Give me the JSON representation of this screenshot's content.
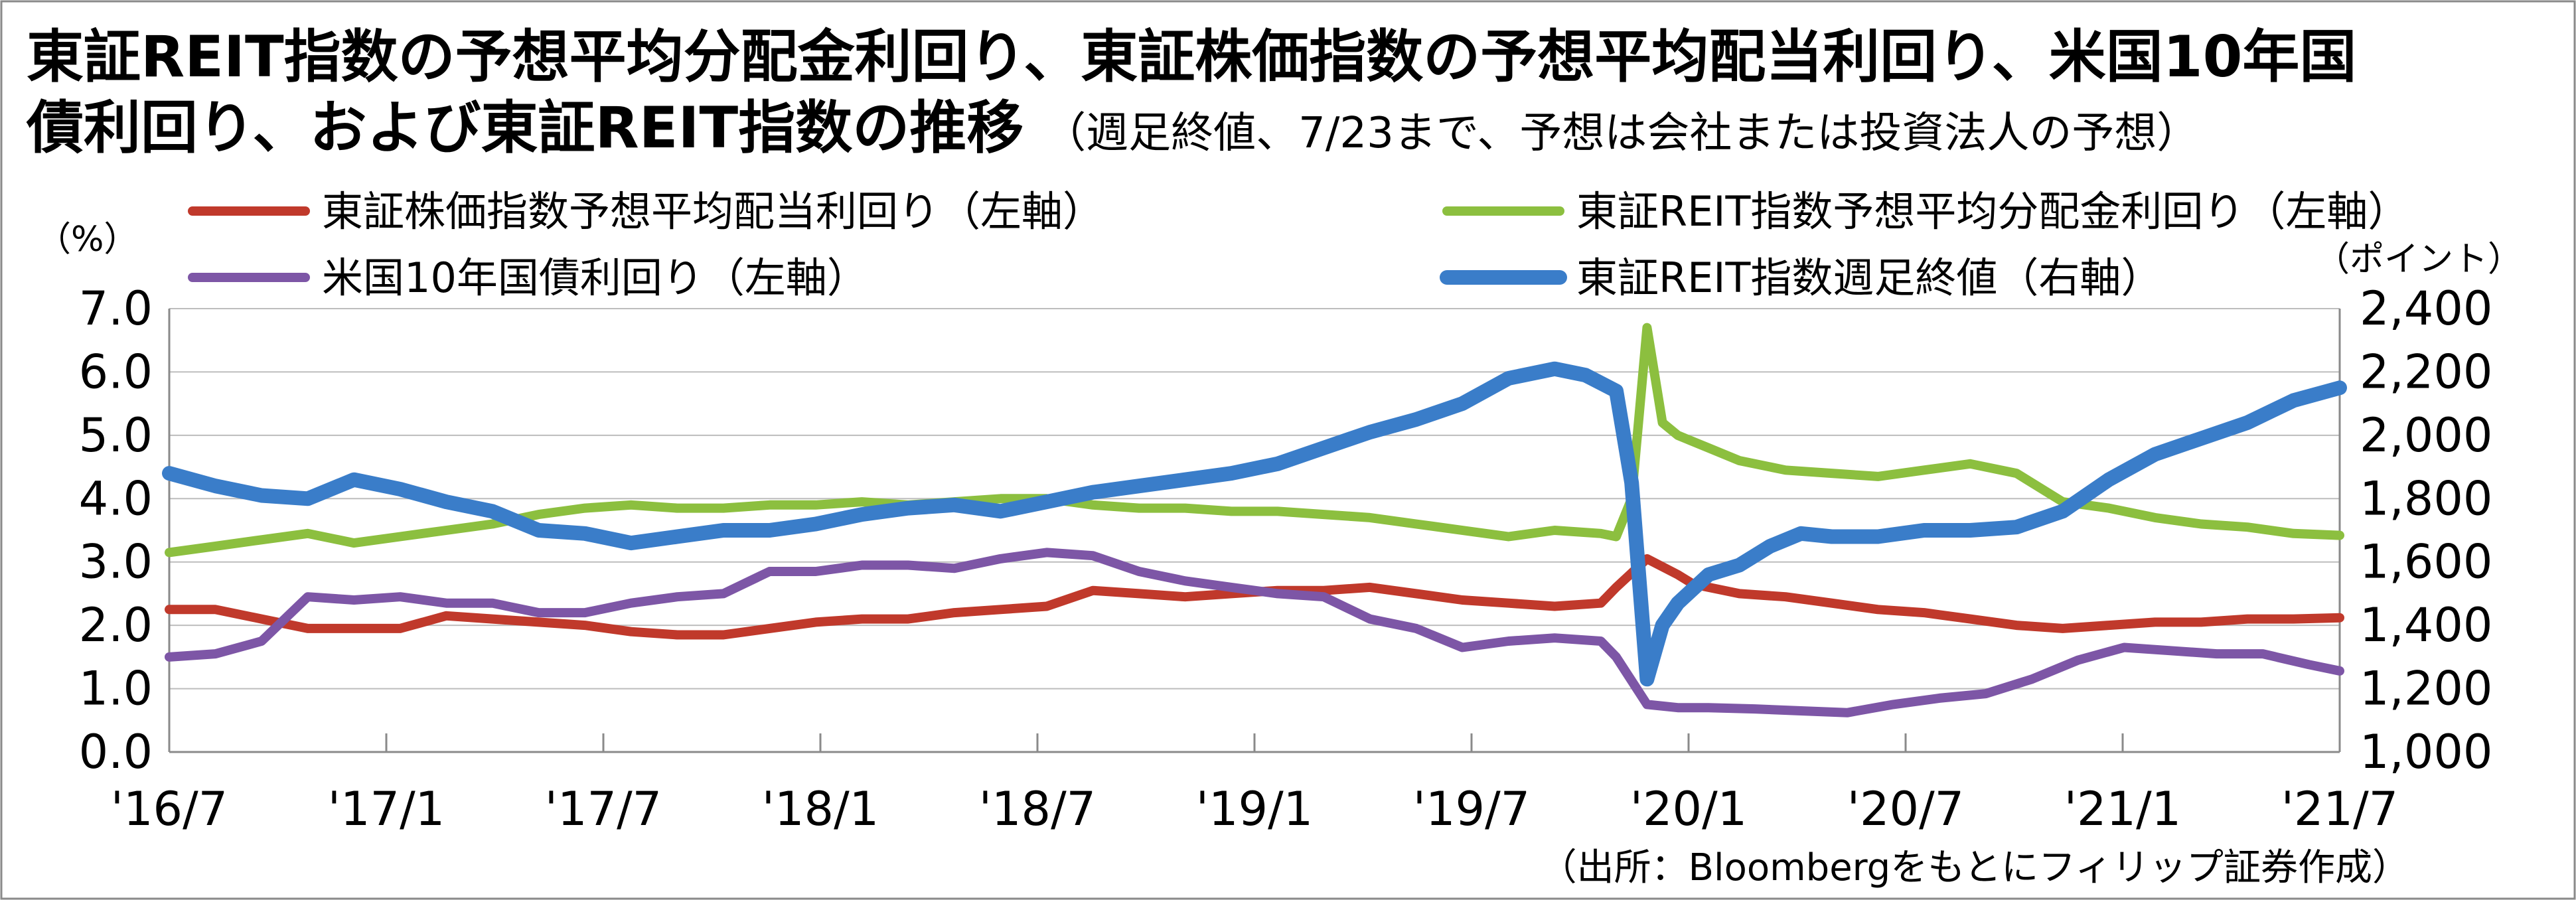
{
  "chart_data": {
    "type": "line",
    "title_line1": "東証REIT指数の予想平均分配金利回り、東証株価指数の予想平均配当利回り、米国10年国",
    "title_line2_bold": "債利回り、および東証REIT指数の推移",
    "title_line2_note": "（週足終値、7/23まで、予想は会社または投資法人の予想）",
    "left_unit": "（%）",
    "right_unit": "（ポイント）",
    "source": "（出所：Bloombergをもとにフィリップ証券作成）",
    "x_ticks": [
      "'16/7",
      "'17/1",
      "'17/7",
      "'18/1",
      "'18/7",
      "'19/1",
      "'19/7",
      "'20/1",
      "'20/7",
      "'21/1",
      "'21/7"
    ],
    "left_axis": {
      "ylim": [
        0,
        7
      ],
      "ticks": [
        "0.0",
        "1.0",
        "2.0",
        "3.0",
        "4.0",
        "5.0",
        "6.0",
        "7.0"
      ]
    },
    "right_axis": {
      "ylim": [
        1000,
        2400
      ],
      "ticks": [
        "1,000",
        "1,200",
        "1,400",
        "1,600",
        "1,800",
        "2,000",
        "2,200",
        "2,400"
      ]
    },
    "grid": true,
    "series": [
      {
        "name": "東証株価指数予想平均配当利回り（左軸）",
        "axis": "left",
        "color": "#c0392b",
        "points": [
          [
            0,
            2.25
          ],
          [
            3,
            2.25
          ],
          [
            6,
            2.1
          ],
          [
            9,
            1.95
          ],
          [
            12,
            1.95
          ],
          [
            15,
            1.95
          ],
          [
            18,
            2.15
          ],
          [
            21,
            2.1
          ],
          [
            24,
            2.05
          ],
          [
            27,
            2.0
          ],
          [
            30,
            1.9
          ],
          [
            33,
            1.85
          ],
          [
            36,
            1.85
          ],
          [
            39,
            1.95
          ],
          [
            42,
            2.05
          ],
          [
            45,
            2.1
          ],
          [
            48,
            2.1
          ],
          [
            51,
            2.2
          ],
          [
            54,
            2.25
          ],
          [
            57,
            2.3
          ],
          [
            60,
            2.55
          ],
          [
            63,
            2.5
          ],
          [
            66,
            2.45
          ],
          [
            69,
            2.5
          ],
          [
            72,
            2.55
          ],
          [
            75,
            2.55
          ],
          [
            78,
            2.6
          ],
          [
            81,
            2.5
          ],
          [
            84,
            2.4
          ],
          [
            87,
            2.35
          ],
          [
            90,
            2.3
          ],
          [
            93,
            2.35
          ],
          [
            94,
            2.6
          ],
          [
            96,
            3.05
          ],
          [
            98,
            2.8
          ],
          [
            99,
            2.65
          ],
          [
            102,
            2.5
          ],
          [
            105,
            2.45
          ],
          [
            108,
            2.35
          ],
          [
            111,
            2.25
          ],
          [
            114,
            2.2
          ],
          [
            117,
            2.1
          ],
          [
            120,
            2.0
          ],
          [
            123,
            1.95
          ],
          [
            126,
            2.0
          ],
          [
            129,
            2.05
          ],
          [
            132,
            2.05
          ],
          [
            135,
            2.1
          ],
          [
            138,
            2.1
          ],
          [
            141,
            2.12
          ]
        ]
      },
      {
        "name": "東証REIT指数予想平均分配金利回り（左軸）",
        "axis": "left",
        "color": "#8cbf3f",
        "points": [
          [
            0,
            3.15
          ],
          [
            3,
            3.25
          ],
          [
            6,
            3.35
          ],
          [
            9,
            3.45
          ],
          [
            12,
            3.3
          ],
          [
            15,
            3.4
          ],
          [
            18,
            3.5
          ],
          [
            21,
            3.6
          ],
          [
            24,
            3.75
          ],
          [
            27,
            3.85
          ],
          [
            30,
            3.9
          ],
          [
            33,
            3.85
          ],
          [
            36,
            3.85
          ],
          [
            39,
            3.9
          ],
          [
            42,
            3.9
          ],
          [
            45,
            3.95
          ],
          [
            48,
            3.9
          ],
          [
            51,
            3.95
          ],
          [
            54,
            4.0
          ],
          [
            57,
            4.0
          ],
          [
            60,
            3.9
          ],
          [
            63,
            3.85
          ],
          [
            66,
            3.85
          ],
          [
            69,
            3.8
          ],
          [
            72,
            3.8
          ],
          [
            75,
            3.75
          ],
          [
            78,
            3.7
          ],
          [
            81,
            3.6
          ],
          [
            84,
            3.5
          ],
          [
            87,
            3.4
          ],
          [
            90,
            3.5
          ],
          [
            93,
            3.45
          ],
          [
            94,
            3.4
          ],
          [
            95,
            4.0
          ],
          [
            96,
            6.7
          ],
          [
            97,
            5.2
          ],
          [
            98,
            5.0
          ],
          [
            100,
            4.8
          ],
          [
            102,
            4.6
          ],
          [
            105,
            4.45
          ],
          [
            108,
            4.4
          ],
          [
            111,
            4.35
          ],
          [
            114,
            4.45
          ],
          [
            117,
            4.55
          ],
          [
            120,
            4.4
          ],
          [
            123,
            3.95
          ],
          [
            126,
            3.85
          ],
          [
            129,
            3.7
          ],
          [
            132,
            3.6
          ],
          [
            135,
            3.55
          ],
          [
            138,
            3.45
          ],
          [
            141,
            3.42
          ]
        ]
      },
      {
        "name": "米国10年国債利回り（左軸）",
        "axis": "left",
        "color": "#7d56a6",
        "points": [
          [
            0,
            1.5
          ],
          [
            3,
            1.55
          ],
          [
            6,
            1.75
          ],
          [
            9,
            2.45
          ],
          [
            12,
            2.4
          ],
          [
            15,
            2.45
          ],
          [
            18,
            2.35
          ],
          [
            21,
            2.35
          ],
          [
            24,
            2.2
          ],
          [
            27,
            2.2
          ],
          [
            30,
            2.35
          ],
          [
            33,
            2.45
          ],
          [
            36,
            2.5
          ],
          [
            39,
            2.85
          ],
          [
            42,
            2.85
          ],
          [
            45,
            2.95
          ],
          [
            48,
            2.95
          ],
          [
            51,
            2.9
          ],
          [
            54,
            3.05
          ],
          [
            57,
            3.15
          ],
          [
            60,
            3.1
          ],
          [
            63,
            2.85
          ],
          [
            66,
            2.7
          ],
          [
            69,
            2.6
          ],
          [
            72,
            2.5
          ],
          [
            75,
            2.45
          ],
          [
            78,
            2.1
          ],
          [
            81,
            1.95
          ],
          [
            84,
            1.65
          ],
          [
            87,
            1.75
          ],
          [
            90,
            1.8
          ],
          [
            93,
            1.75
          ],
          [
            94,
            1.5
          ],
          [
            96,
            0.75
          ],
          [
            98,
            0.7
          ],
          [
            100,
            0.7
          ],
          [
            103,
            0.68
          ],
          [
            106,
            0.65
          ],
          [
            109,
            0.62
          ],
          [
            112,
            0.75
          ],
          [
            115,
            0.85
          ],
          [
            118,
            0.92
          ],
          [
            121,
            1.15
          ],
          [
            124,
            1.45
          ],
          [
            127,
            1.65
          ],
          [
            130,
            1.6
          ],
          [
            133,
            1.55
          ],
          [
            136,
            1.55
          ],
          [
            139,
            1.38
          ],
          [
            141,
            1.28
          ]
        ]
      },
      {
        "name": "東証REIT指数週足終値（右軸）",
        "axis": "right",
        "color": "#3a7dc9",
        "points": [
          [
            0,
            1880
          ],
          [
            3,
            1840
          ],
          [
            6,
            1810
          ],
          [
            9,
            1800
          ],
          [
            12,
            1860
          ],
          [
            15,
            1830
          ],
          [
            18,
            1790
          ],
          [
            21,
            1760
          ],
          [
            24,
            1700
          ],
          [
            27,
            1690
          ],
          [
            30,
            1660
          ],
          [
            33,
            1680
          ],
          [
            36,
            1700
          ],
          [
            39,
            1700
          ],
          [
            42,
            1720
          ],
          [
            45,
            1750
          ],
          [
            48,
            1770
          ],
          [
            51,
            1780
          ],
          [
            54,
            1760
          ],
          [
            57,
            1790
          ],
          [
            60,
            1820
          ],
          [
            63,
            1840
          ],
          [
            66,
            1860
          ],
          [
            69,
            1880
          ],
          [
            72,
            1910
          ],
          [
            75,
            1960
          ],
          [
            78,
            2010
          ],
          [
            81,
            2050
          ],
          [
            84,
            2100
          ],
          [
            87,
            2180
          ],
          [
            90,
            2210
          ],
          [
            92,
            2190
          ],
          [
            94,
            2140
          ],
          [
            95,
            1850
          ],
          [
            96,
            1230
          ],
          [
            97,
            1400
          ],
          [
            98,
            1470
          ],
          [
            100,
            1560
          ],
          [
            102,
            1590
          ],
          [
            104,
            1650
          ],
          [
            106,
            1690
          ],
          [
            108,
            1680
          ],
          [
            111,
            1680
          ],
          [
            114,
            1700
          ],
          [
            117,
            1700
          ],
          [
            120,
            1710
          ],
          [
            123,
            1760
          ],
          [
            126,
            1860
          ],
          [
            129,
            1940
          ],
          [
            132,
            1990
          ],
          [
            135,
            2040
          ],
          [
            138,
            2110
          ],
          [
            141,
            2150
          ]
        ]
      }
    ]
  }
}
